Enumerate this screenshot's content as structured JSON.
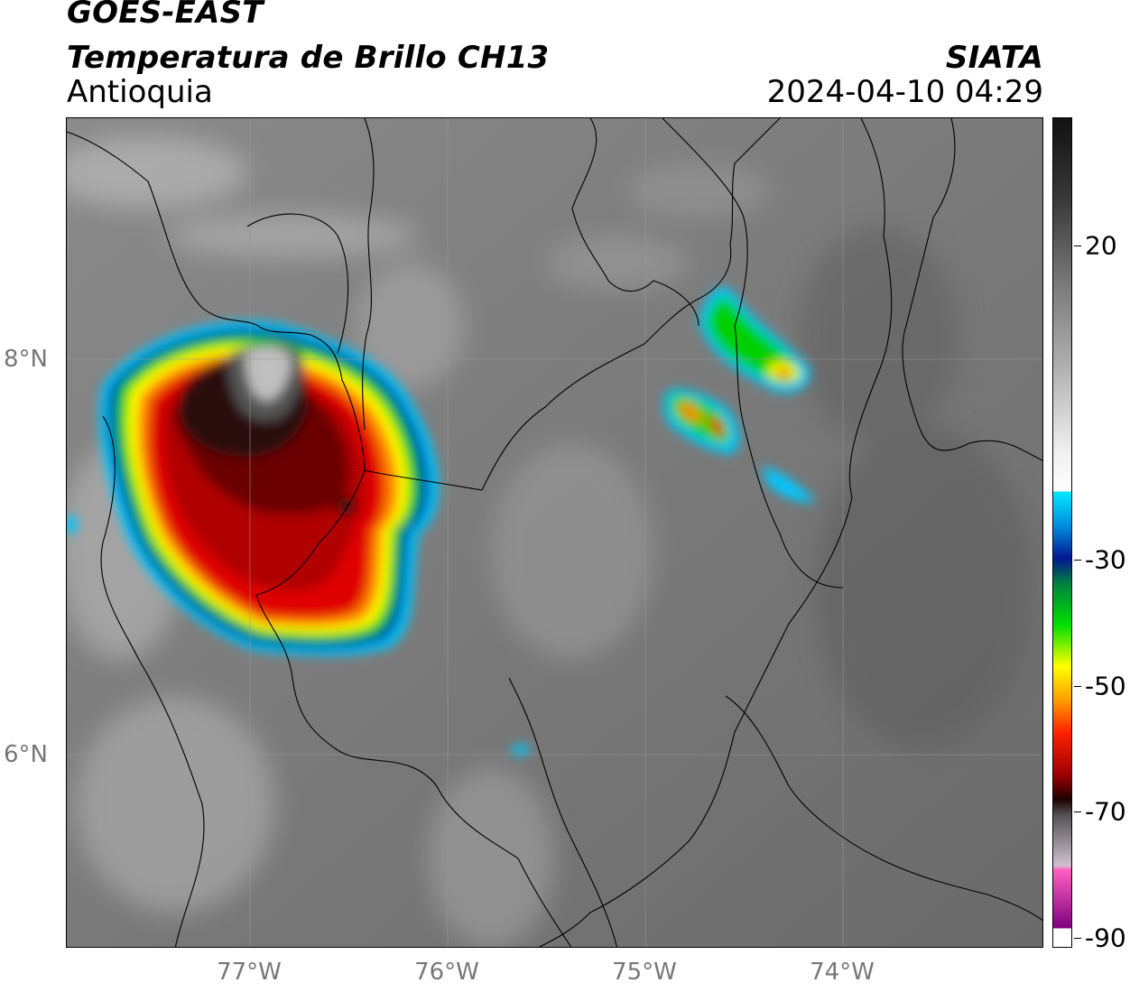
{
  "header": {
    "satellite": "GOES-EAST",
    "product": "Temperatura de Brillo CH13",
    "region": "Antioquia",
    "agency": "SIATA",
    "timestamp": "2024-04-10 04:29"
  },
  "map": {
    "lat_ticks": [
      "8°N",
      "6°N"
    ],
    "lon_ticks": [
      "77°W",
      "76°W",
      "75°W",
      "74°W"
    ],
    "colors": {
      "background": "#6e6e6e",
      "cold_core": "#2a1010",
      "deep_red": "#8b0000",
      "red": "#e00000",
      "orange": "#ff8000",
      "yellow": "#ffff00",
      "green": "#00d000",
      "blue": "#0030a0",
      "cyan": "#00c8ff"
    }
  },
  "colorbar": {
    "ticks": [
      "20",
      "-30",
      "-50",
      "-70",
      "-90"
    ],
    "range": [
      -90,
      35
    ]
  }
}
